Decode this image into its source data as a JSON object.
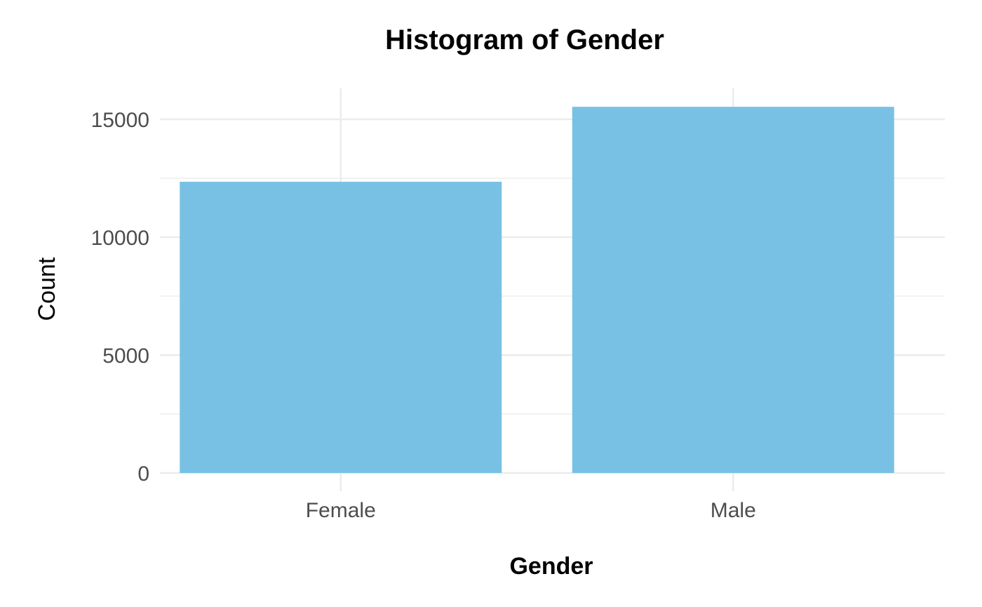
{
  "chart_data": {
    "type": "bar",
    "title": "Histogram of Gender",
    "xlabel": "Gender",
    "ylabel": "Count",
    "categories": [
      "Female",
      "Male"
    ],
    "values": [
      12350,
      15530
    ],
    "ylim": [
      0,
      16300
    ],
    "yticks": [
      0,
      5000,
      10000,
      15000
    ],
    "ytick_labels": [
      "0",
      "5000",
      "10000",
      "15000"
    ],
    "minor_yticks": [
      2500,
      7500,
      12500
    ],
    "grid": true,
    "legend": "none",
    "colors": {
      "bar": "#79C1E4",
      "grid": "#EBEBEB",
      "tick_text": "#4D4D4D",
      "title_text": "#000000"
    }
  }
}
